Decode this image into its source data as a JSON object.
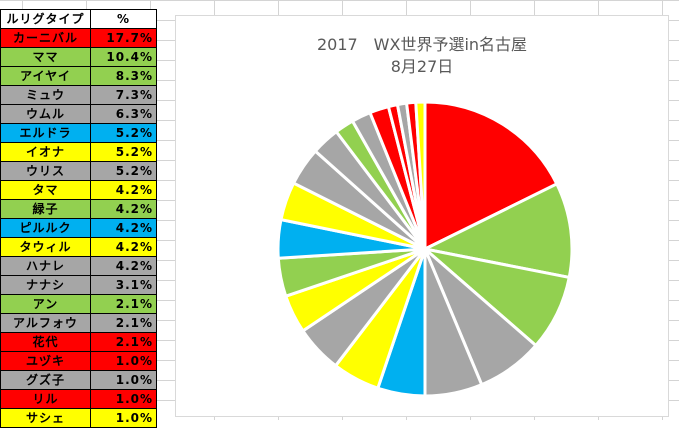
{
  "table": {
    "header_name": "ルリグタイプ",
    "header_pct": "%"
  },
  "colors": {
    "red": "#ff0000",
    "green": "#92d050",
    "gray": "#a6a6a6",
    "blue": "#00b0f0",
    "yellow": "#ffff00"
  },
  "chart_data": {
    "type": "pie",
    "title": "2017　WX世界予選in名古屋",
    "subtitle": "8月27日",
    "start_angle_deg": 0,
    "direction": "clockwise",
    "slices": [
      {
        "label": "カーニバル",
        "pct_text": "17.7%",
        "value": 17.7,
        "color": "red"
      },
      {
        "label": "ママ",
        "pct_text": "10.4%",
        "value": 10.4,
        "color": "green"
      },
      {
        "label": "アイヤイ",
        "pct_text": "8.3%",
        "value": 8.3,
        "color": "green"
      },
      {
        "label": "ミュウ",
        "pct_text": "7.3%",
        "value": 7.3,
        "color": "gray"
      },
      {
        "label": "ウムル",
        "pct_text": "6.3%",
        "value": 6.3,
        "color": "gray"
      },
      {
        "label": "エルドラ",
        "pct_text": "5.2%",
        "value": 5.2,
        "color": "blue"
      },
      {
        "label": "イオナ",
        "pct_text": "5.2%",
        "value": 5.2,
        "color": "yellow"
      },
      {
        "label": "ウリス",
        "pct_text": "5.2%",
        "value": 5.2,
        "color": "gray"
      },
      {
        "label": "タマ",
        "pct_text": "4.2%",
        "value": 4.2,
        "color": "yellow"
      },
      {
        "label": "緑子",
        "pct_text": "4.2%",
        "value": 4.2,
        "color": "green"
      },
      {
        "label": "ピルルク",
        "pct_text": "4.2%",
        "value": 4.2,
        "color": "blue"
      },
      {
        "label": "タウィル",
        "pct_text": "4.2%",
        "value": 4.2,
        "color": "yellow"
      },
      {
        "label": "ハナレ",
        "pct_text": "4.2%",
        "value": 4.2,
        "color": "gray"
      },
      {
        "label": "ナナシ",
        "pct_text": "3.1%",
        "value": 3.1,
        "color": "gray"
      },
      {
        "label": "アン",
        "pct_text": "2.1%",
        "value": 2.1,
        "color": "green"
      },
      {
        "label": "アルフォウ",
        "pct_text": "2.1%",
        "value": 2.1,
        "color": "gray"
      },
      {
        "label": "花代",
        "pct_text": "2.1%",
        "value": 2.1,
        "color": "red"
      },
      {
        "label": "ユヅキ",
        "pct_text": "1.0%",
        "value": 1.0,
        "color": "red"
      },
      {
        "label": "グズ子",
        "pct_text": "1.0%",
        "value": 1.0,
        "color": "gray"
      },
      {
        "label": "リル",
        "pct_text": "1.0%",
        "value": 1.0,
        "color": "red"
      },
      {
        "label": "サシェ",
        "pct_text": "1.0%",
        "value": 1.0,
        "color": "yellow"
      }
    ]
  }
}
